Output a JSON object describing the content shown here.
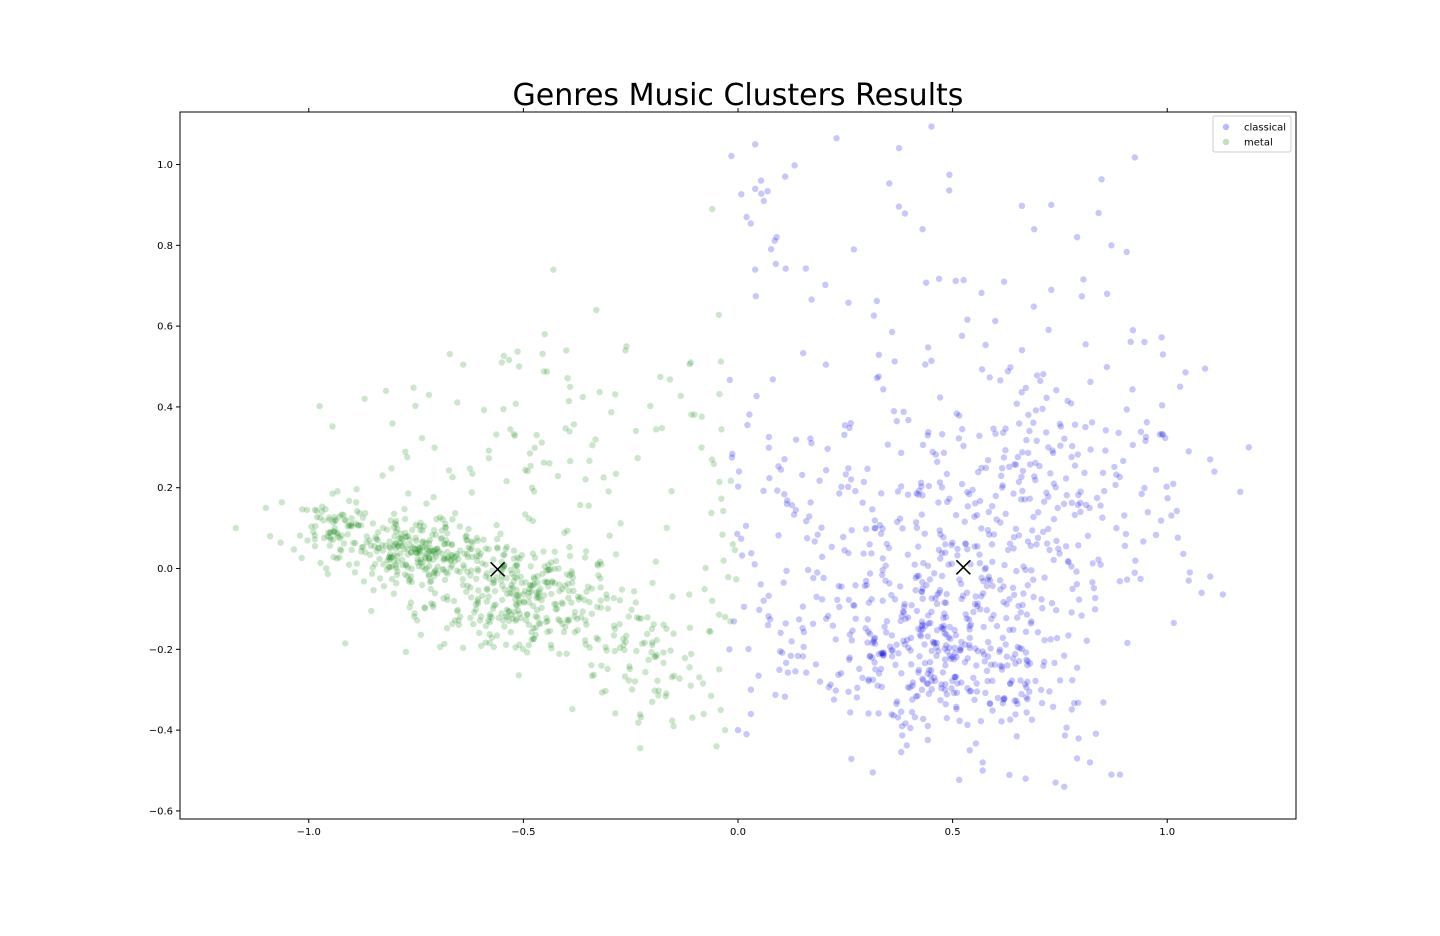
{
  "chart_data": {
    "type": "scatter",
    "title": "Genres Music Clusters Results",
    "xlabel": "",
    "ylabel": "",
    "xlim": [
      -1.3,
      1.3
    ],
    "ylim": [
      -0.62,
      1.13
    ],
    "x_ticks": [
      -1.0,
      -0.5,
      0.0,
      0.5,
      1.0
    ],
    "x_tick_labels": [
      "−1.0",
      "−0.5",
      "0.0",
      "0.5",
      "1.0"
    ],
    "y_ticks": [
      -0.6,
      -0.4,
      -0.2,
      0.0,
      0.2,
      0.4,
      0.6,
      0.8,
      1.0
    ],
    "y_tick_labels": [
      "−0.6",
      "−0.4",
      "−0.2",
      "0.0",
      "0.2",
      "0.4",
      "0.6",
      "0.8",
      "1.0"
    ],
    "grid": false,
    "legend_position": "top-right",
    "series": [
      {
        "name": "classical",
        "color": "#0000ee",
        "opacity": 0.22,
        "clusters": [
          {
            "cx": 0.5,
            "cy": -0.22,
            "sx": 0.16,
            "sy": 0.11,
            "n": 320
          },
          {
            "cx": 0.42,
            "cy": 0.0,
            "sx": 0.2,
            "sy": 0.18,
            "n": 230
          },
          {
            "cx": 0.75,
            "cy": 0.22,
            "sx": 0.15,
            "sy": 0.16,
            "n": 200
          },
          {
            "cx": 0.2,
            "cy": 0.15,
            "sx": 0.13,
            "sy": 0.2,
            "n": 70
          },
          {
            "cx": 0.45,
            "cy": 0.55,
            "sx": 0.28,
            "sy": 0.25,
            "n": 55
          },
          {
            "cx": 0.05,
            "cy": 0.8,
            "sx": 0.04,
            "sy": 0.12,
            "n": 10
          }
        ],
        "points": [
          [
            0.04,
            1.05
          ],
          [
            0.04,
            0.94
          ],
          [
            0.06,
            0.91
          ],
          [
            0.11,
            0.97
          ],
          [
            0.02,
            0.87
          ],
          [
            0.09,
            0.82
          ],
          [
            0.04,
            0.74
          ],
          [
            0.27,
            0.79
          ],
          [
            0.43,
            0.84
          ],
          [
            0.73,
            0.9
          ],
          [
            0.84,
            0.88
          ],
          [
            0.79,
            0.82
          ],
          [
            0.87,
            0.8
          ],
          [
            0.69,
            0.84
          ],
          [
            0.62,
            0.71
          ],
          [
            0.73,
            0.69
          ],
          [
            0.86,
            0.68
          ],
          [
            0.92,
            0.59
          ],
          [
            0.99,
            0.53
          ],
          [
            1.03,
            0.45
          ],
          [
            1.19,
            0.3
          ],
          [
            1.17,
            0.19
          ],
          [
            1.11,
            0.24
          ],
          [
            1.1,
            0.27
          ],
          [
            1.05,
            0.29
          ],
          [
            1.1,
            -0.02
          ],
          [
            1.08,
            -0.06
          ],
          [
            1.05,
            -0.03
          ],
          [
            0.79,
            -0.47
          ],
          [
            0.82,
            -0.48
          ],
          [
            0.87,
            -0.51
          ],
          [
            0.89,
            -0.51
          ],
          [
            0.76,
            -0.54
          ],
          [
            0.74,
            -0.53
          ],
          [
            0.67,
            -0.52
          ],
          [
            0.57,
            -0.5
          ],
          [
            0.57,
            -0.48
          ],
          [
            0.0,
            -0.4
          ],
          [
            0.02,
            -0.41
          ],
          [
            0.03,
            -0.36
          ],
          [
            0.03,
            -0.3
          ],
          [
            -0.02,
            -0.2
          ],
          [
            0.07,
            -0.14
          ]
        ],
        "centroid": [
          0.525,
          0.003
        ]
      },
      {
        "name": "metal",
        "color": "#008000",
        "opacity": 0.2,
        "clusters": [
          {
            "cx": -0.75,
            "cy": 0.04,
            "sx": 0.09,
            "sy": 0.045,
            "n": 260
          },
          {
            "cx": -0.5,
            "cy": -0.07,
            "sx": 0.12,
            "sy": 0.07,
            "n": 320
          },
          {
            "cx": -0.95,
            "cy": 0.1,
            "sx": 0.05,
            "sy": 0.035,
            "n": 70
          },
          {
            "cx": -0.22,
            "cy": -0.22,
            "sx": 0.09,
            "sy": 0.08,
            "n": 80
          },
          {
            "cx": -0.45,
            "cy": 0.3,
            "sx": 0.22,
            "sy": 0.14,
            "n": 90
          },
          {
            "cx": -0.08,
            "cy": 0.1,
            "sx": 0.07,
            "sy": 0.2,
            "n": 30
          }
        ],
        "points": [
          [
            -1.17,
            0.1
          ],
          [
            -1.09,
            0.08
          ],
          [
            -1.1,
            0.15
          ],
          [
            -0.43,
            0.74
          ],
          [
            -0.33,
            0.64
          ],
          [
            -0.06,
            0.89
          ],
          [
            -0.45,
            0.58
          ],
          [
            -0.4,
            0.54
          ],
          [
            -0.26,
            0.55
          ],
          [
            -0.55,
            0.51
          ],
          [
            -0.51,
            0.5
          ],
          [
            -0.11,
            0.51
          ],
          [
            -0.87,
            0.42
          ],
          [
            -0.82,
            0.44
          ],
          [
            -0.72,
            0.43
          ],
          [
            -0.05,
            -0.44
          ],
          [
            -0.03,
            -0.4
          ],
          [
            -0.04,
            -0.35
          ],
          [
            -0.08,
            -0.36
          ],
          [
            -0.15,
            -0.39
          ],
          [
            -0.11,
            -0.29
          ],
          [
            -0.2,
            -0.33
          ],
          [
            -0.03,
            -0.12
          ],
          [
            -0.06,
            -0.08
          ]
        ],
        "centroid": [
          -0.56,
          -0.002
        ]
      }
    ],
    "centroid_marker": "x",
    "centroid_color": "#000000"
  }
}
